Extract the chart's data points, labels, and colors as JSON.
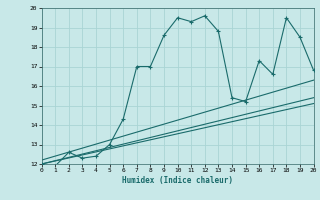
{
  "title": "",
  "xlabel": "Humidex (Indice chaleur)",
  "ylabel": "",
  "xlim": [
    0,
    20
  ],
  "ylim": [
    12,
    20
  ],
  "yticks": [
    12,
    13,
    14,
    15,
    16,
    17,
    18,
    19,
    20
  ],
  "xticks": [
    0,
    1,
    2,
    3,
    4,
    5,
    6,
    7,
    8,
    9,
    10,
    11,
    12,
    13,
    14,
    15,
    16,
    17,
    18,
    19,
    20
  ],
  "bg_color": "#c8e8e8",
  "grid_color": "#b0d8d8",
  "line_color": "#1a6b6b",
  "series1_x": [
    0,
    1,
    2,
    3,
    4,
    5,
    6,
    7,
    8,
    9,
    10,
    11,
    12,
    13,
    14,
    15,
    16,
    17,
    18,
    19,
    20
  ],
  "series1_y": [
    12.0,
    11.9,
    12.6,
    12.3,
    12.4,
    13.0,
    14.3,
    17.0,
    17.0,
    18.6,
    19.5,
    19.3,
    19.6,
    18.8,
    15.4,
    15.2,
    17.3,
    16.6,
    19.5,
    18.5,
    16.8
  ],
  "series2_x": [
    0,
    20
  ],
  "series2_y": [
    12.2,
    16.3
  ],
  "series3_x": [
    0,
    20
  ],
  "series3_y": [
    12.0,
    15.4
  ],
  "series4_x": [
    0,
    20
  ],
  "series4_y": [
    12.0,
    15.1
  ]
}
